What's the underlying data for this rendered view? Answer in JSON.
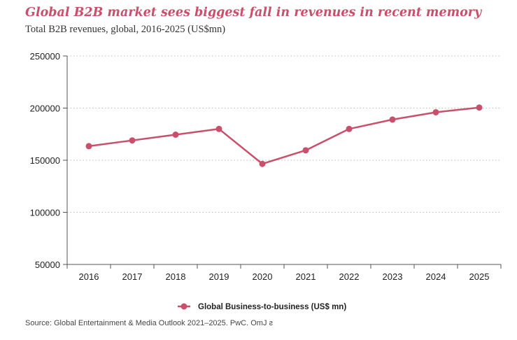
{
  "colors": {
    "title": "#c8506a",
    "series": "#c8506a",
    "axis": "#555555",
    "grid": "#bbbbbb"
  },
  "chart_data": {
    "type": "line",
    "title": "Global B2B market sees biggest fall in revenues in recent memory",
    "subtitle": "Total B2B revenues, global, 2016-2025 (US$mn)",
    "xlabel": "",
    "ylabel": "",
    "categories": [
      "2016",
      "2017",
      "2018",
      "2019",
      "2020",
      "2021",
      "2022",
      "2023",
      "2024",
      "2025"
    ],
    "series": [
      {
        "name": "Global Business-to-business (US$ mn)",
        "values": [
          163500,
          169000,
          174500,
          180000,
          146500,
          159500,
          180000,
          189000,
          196000,
          200500
        ]
      }
    ],
    "ylim": [
      50000,
      250000
    ],
    "yticks": [
      "250000",
      "200000",
      "150000",
      "100000",
      "50000"
    ],
    "ytick_values": [
      250000,
      200000,
      150000,
      100000,
      50000
    ],
    "grid": true,
    "legend": "bottom-center",
    "source": "Source: Global Entertainment & Media Outlook 2021–2025. PwC. OmJ ƨ"
  }
}
